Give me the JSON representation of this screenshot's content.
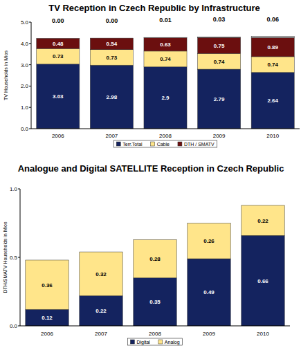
{
  "chart_data": [
    {
      "type": "bar",
      "title": "TV Reception in Czech Republic by Infrastructure",
      "ylabel": "TV Households in Mios",
      "categories": [
        "2006",
        "2007",
        "2008",
        "2009",
        "2010"
      ],
      "series": [
        {
          "name": "Terr.Total",
          "color": "#14235f",
          "values": [
            3.03,
            2.98,
            2.9,
            2.79,
            2.64
          ]
        },
        {
          "name": "Cable",
          "color": "#ffe58a",
          "values": [
            0.73,
            0.73,
            0.74,
            0.74,
            0.74
          ]
        },
        {
          "name": "DTH / SMATV",
          "color": "#6b0f0f",
          "values": [
            0.48,
            0.54,
            0.63,
            0.75,
            0.89
          ]
        },
        {
          "name": null,
          "color": "#c0c0c0",
          "values": [
            0,
            0,
            0.01,
            0.03,
            0.06
          ],
          "value_labels": [
            "0.00",
            "0.00",
            "0.01",
            "0.03",
            "0.06"
          ]
        }
      ],
      "ylim": [
        0,
        5
      ],
      "yticks": [
        {
          "value": 0,
          "label": "0.0"
        },
        {
          "value": 1,
          "label": "1.0"
        },
        {
          "value": 2,
          "label": "2.0"
        },
        {
          "value": 3,
          "label": "3.0"
        },
        {
          "value": 4,
          "label": "4.0"
        },
        {
          "value": 5,
          "label": "5.0"
        }
      ],
      "stacked": true,
      "data_labels": true,
      "grid": false,
      "legend": "bottom"
    },
    {
      "type": "bar",
      "title": "Analogue and Digital SATELLITE Reception in Czech Republic",
      "ylabel": "DTH/SMATV Households in Mios",
      "categories": [
        "2006",
        "2007",
        "2008",
        "2009",
        "2010"
      ],
      "series": [
        {
          "name": "Digital",
          "color": "#14235f",
          "values": [
            0.12,
            0.22,
            0.35,
            0.49,
            0.66
          ]
        },
        {
          "name": "Analog",
          "color": "#ffe58a",
          "values": [
            0.36,
            0.32,
            0.28,
            0.26,
            0.22
          ]
        }
      ],
      "ylim": [
        0,
        1
      ],
      "yticks": [
        {
          "value": 0,
          "label": "0.0"
        },
        {
          "value": 0.5,
          "label": "0.5"
        },
        {
          "value": 1,
          "label": "1.0"
        }
      ],
      "stacked": true,
      "data_labels": true,
      "grid": false,
      "legend": "bottom"
    }
  ]
}
